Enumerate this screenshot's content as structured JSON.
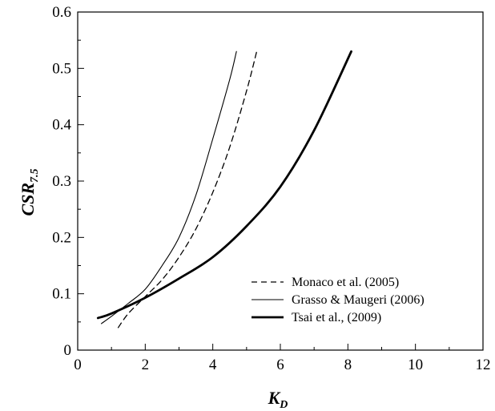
{
  "chart_data": {
    "type": "line",
    "xlabel": "K",
    "xlabel_subscript": "D",
    "ylabel": "CSR",
    "ylabel_subscript": "7.5",
    "xlim": [
      0,
      12
    ],
    "ylim": [
      0,
      0.6
    ],
    "x_ticks": [
      "0",
      "2",
      "4",
      "6",
      "8",
      "10",
      "12"
    ],
    "y_ticks": [
      "0",
      "0.1",
      "0.2",
      "0.3",
      "0.4",
      "0.5",
      "0.6"
    ],
    "grid": false,
    "legend_position": "bottom-right",
    "series": [
      {
        "name": "Monaco et al. (2005)",
        "style": "dashed",
        "x": [
          1.2,
          1.5,
          2.0,
          2.5,
          3.0,
          3.5,
          4.0,
          4.5,
          5.0,
          5.3
        ],
        "y": [
          0.04,
          0.065,
          0.095,
          0.125,
          0.165,
          0.215,
          0.28,
          0.36,
          0.46,
          0.53
        ]
      },
      {
        "name": "Grasso & Maugeri (2006)",
        "style": "thin",
        "x": [
          0.7,
          1.0,
          1.5,
          2.0,
          2.5,
          3.0,
          3.5,
          4.0,
          4.5,
          4.7
        ],
        "y": [
          0.047,
          0.06,
          0.083,
          0.108,
          0.15,
          0.2,
          0.275,
          0.375,
          0.48,
          0.53
        ]
      },
      {
        "name": "Tsai et al., (2009)",
        "style": "thick",
        "x": [
          0.6,
          1.0,
          2.0,
          3.0,
          4.0,
          5.0,
          6.0,
          7.0,
          8.1
        ],
        "y": [
          0.057,
          0.065,
          0.093,
          0.127,
          0.165,
          0.22,
          0.29,
          0.39,
          0.53
        ]
      }
    ]
  }
}
